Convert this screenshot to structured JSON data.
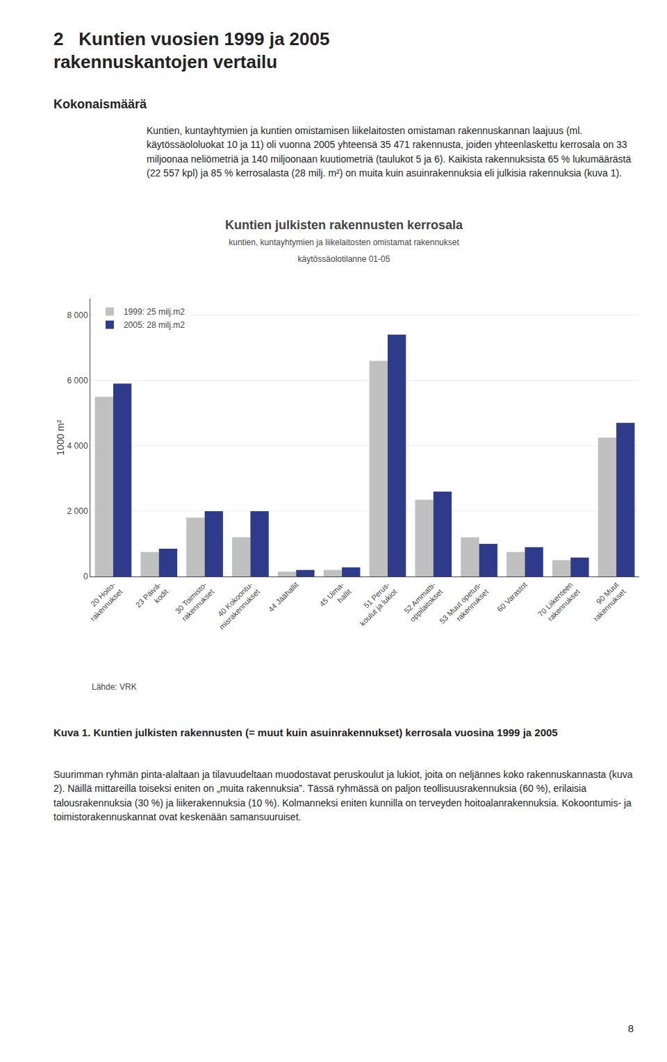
{
  "page_title": [
    "2   Kuntien vuosien 1999 ja 2005",
    "rakennuskantojen vertailu"
  ],
  "section_heading": "Kokonaismäärä",
  "body_text": "Kuntien, kuntayhtymien ja kuntien omistamisen liikelaitosten omistaman rakennuskannan laajuus (ml. käytössäololuokat 10 ja 11) oli vuonna 2005 yhteensä 35 471 rakennusta, joiden yhteenlaskettu kerrosala on 33 miljoonaa neliömetriä ja 140 miljoonaan kuutiometriä (taulukot 5 ja 6). Kaikista rakennuksista 65 % lukumäärästä (22 557 kpl) ja 85 % kerrosalasta (28 milj. m²) on muita kuin asuinrakennuksia eli julkisia rakennuksia (kuva 1).",
  "chart_data": {
    "type": "bar",
    "title": "Kuntien julkisten rakennusten kerrosala",
    "subtitle": [
      "kuntien, kuntayhtymien ja liikelaitosten omistamat rakennukset",
      "käytössäolotilanne 01-05"
    ],
    "y_label": "1000 m²",
    "source": "Lähde: VRK",
    "categories": [
      "20 Hoito-\nrakennukset",
      "23 Päivä-\nkodit",
      "30 Toimisto-\nrakennukset",
      "40 Kokoontu-\nmisrakennukset",
      "44 Jäähallit",
      "45 Uima-\nhallit",
      "51 Perus-\nkoulut ja lukiot",
      "52 Ammatti-\noppilaitokset",
      "53 Muut opetus-\nrakennukset",
      "60 Varastot",
      "70 Liikenteen\nrakennukset",
      "90 Muut\nrakennukset"
    ],
    "series": [
      {
        "name": "1999: 25 milj.m2",
        "color": "#c0c0c0",
        "values": [
          5500,
          750,
          1800,
          1200,
          150,
          200,
          6600,
          2350,
          1200,
          750,
          500,
          4250
        ]
      },
      {
        "name": "2005: 28 milj.m2",
        "color": "#2e3a8a",
        "values": [
          5900,
          850,
          2000,
          2000,
          200,
          280,
          7400,
          2600,
          1000,
          900,
          580,
          4700
        ]
      }
    ],
    "ylim": [
      0,
      8500
    ],
    "yticks": [
      0,
      {
        "value": 2000,
        "label": "2 000"
      },
      {
        "value": 4000,
        "label": "4 000"
      },
      {
        "value": 6000,
        "label": "6 000"
      },
      {
        "value": 8000,
        "label": "8 000"
      }
    ],
    "grid": true,
    "legend": "top-left"
  },
  "caption_title": "Kuva 1. Kuntien julkisten rakennusten (= muut kuin asuinrakennukset) kerrosala vuosina 1999 ja 2005",
  "caption_body": "Suurimman ryhmän pinta-alaltaan ja tilavuudeltaan muodostavat peruskoulut ja lukiot, joita on neljännes koko rakennuskannasta (kuva 2). Näillä mittareilla toiseksi eniten on „muita rakennuksia”. Tässä ryhmässä on paljon teollisuusrakennuksia (60 %), erilaisia talousrakennuksia (30 %) ja liikerakennuksia (10 %). Kolmanneksi eniten kunnilla on terveyden hoitoalanrakennuksia. Kokoontumis- ja toimistorakennuskannat ovat keskenään samansuuruiset.",
  "page_number": "8"
}
